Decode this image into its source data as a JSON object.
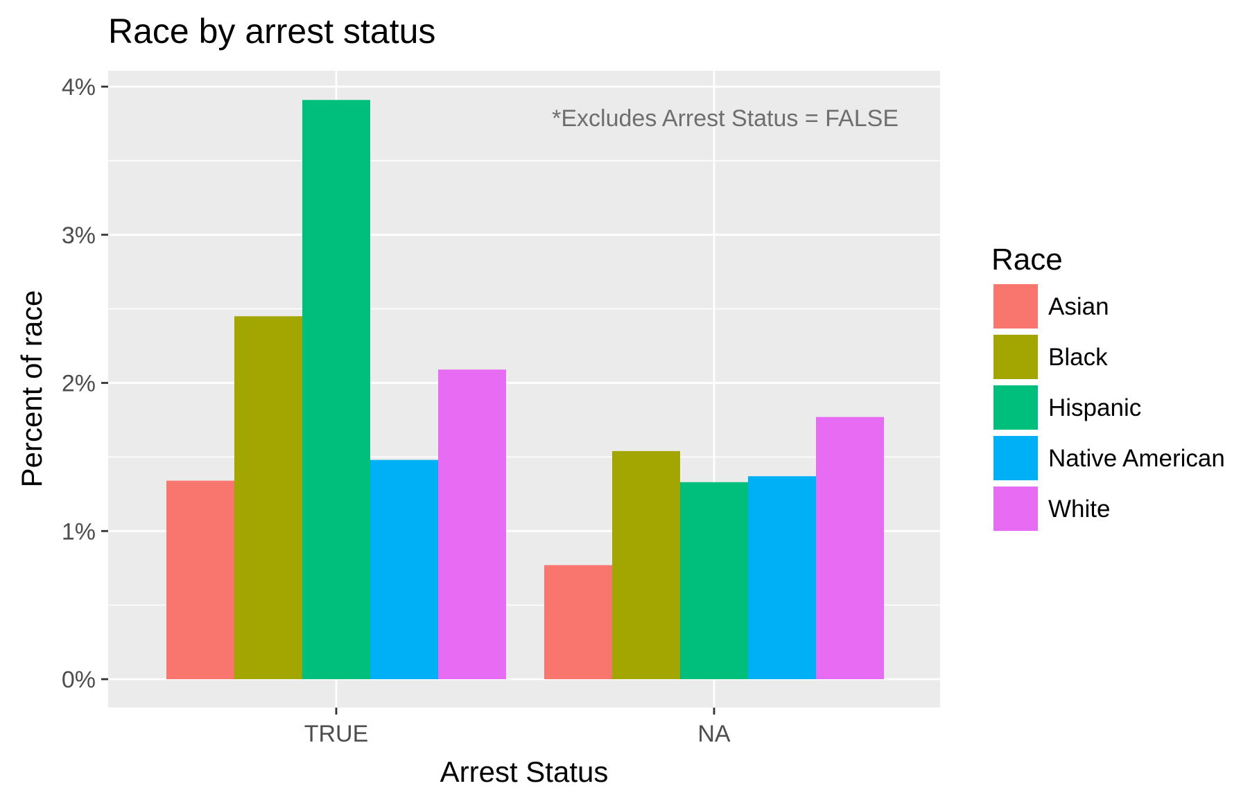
{
  "chart_data": {
    "type": "bar",
    "title": "Race by arrest status",
    "xlabel": "Arrest Status",
    "ylabel": "Percent of race",
    "categories": [
      "TRUE",
      "NA"
    ],
    "ylim": [
      0,
      4
    ],
    "yticks": [
      0,
      1,
      2,
      3,
      4
    ],
    "ytick_labels": [
      "0%",
      "1%",
      "2%",
      "3%",
      "4%"
    ],
    "grid": true,
    "legend_title": "Race",
    "legend_position": "right",
    "annotation": "*Excludes Arrest Status = FALSE",
    "series": [
      {
        "name": "Asian",
        "color": "#F8766D",
        "values": [
          1.34,
          0.77
        ]
      },
      {
        "name": "Black",
        "color": "#A3A500",
        "values": [
          2.45,
          1.54
        ]
      },
      {
        "name": "Hispanic",
        "color": "#00BF7D",
        "values": [
          3.91,
          1.33
        ]
      },
      {
        "name": "Native American",
        "color": "#00B0F6",
        "values": [
          1.48,
          1.37
        ]
      },
      {
        "name": "White",
        "color": "#E76BF3",
        "values": [
          2.09,
          1.77
        ]
      }
    ]
  }
}
